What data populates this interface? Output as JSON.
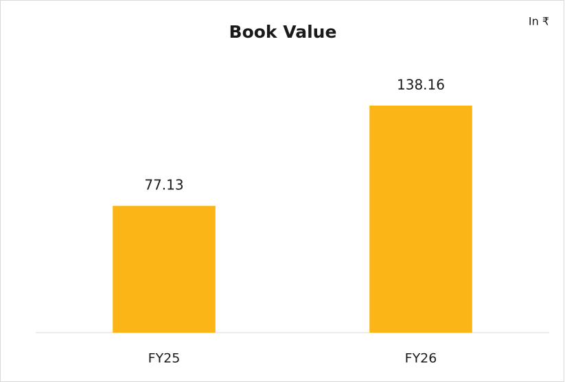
{
  "chart_data": {
    "type": "bar",
    "title": "Book Value",
    "annotation": "In ₹",
    "categories": [
      "FY25",
      "FY26"
    ],
    "values": [
      77.13,
      138.16
    ],
    "color": "#fbb516"
  }
}
